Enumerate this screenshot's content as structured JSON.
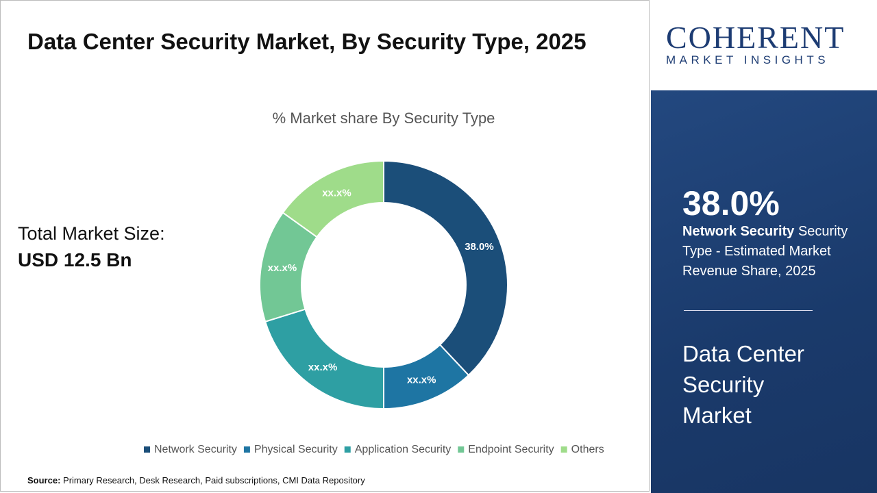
{
  "header": {
    "title": "Data Center Security Market, By Security Type, 2025"
  },
  "market_size": {
    "label": "Total Market Size:",
    "value": "USD 12.5 Bn"
  },
  "chart_data": {
    "type": "donut",
    "title": "% Market share By Security Type",
    "categories": [
      "Network Security",
      "Physical Security",
      "Application Security",
      "Endpoint Security",
      "Others"
    ],
    "values": [
      38.0,
      12.0,
      20.2,
      14.7,
      15.1
    ],
    "value_labels": [
      "38.0%",
      "xx.x%",
      "xx.x%",
      "xx.x%",
      "xx.x%"
    ],
    "colors": [
      "#1b4e79",
      "#1e75a3",
      "#2e9fa3",
      "#72c795",
      "#9fdc8a"
    ]
  },
  "logo": {
    "name": "COHERENT",
    "tagline": "MARKET INSIGHTS"
  },
  "highlight": {
    "value": "38.0%",
    "segment": "Network Security",
    "text": "Security Type - Estimated Market Revenue Share, 2025",
    "market": "Data Center Security Market"
  },
  "source": {
    "label": "Source:",
    "text": "Primary Research, Desk Research, Paid subscriptions, CMI Data Repository"
  }
}
